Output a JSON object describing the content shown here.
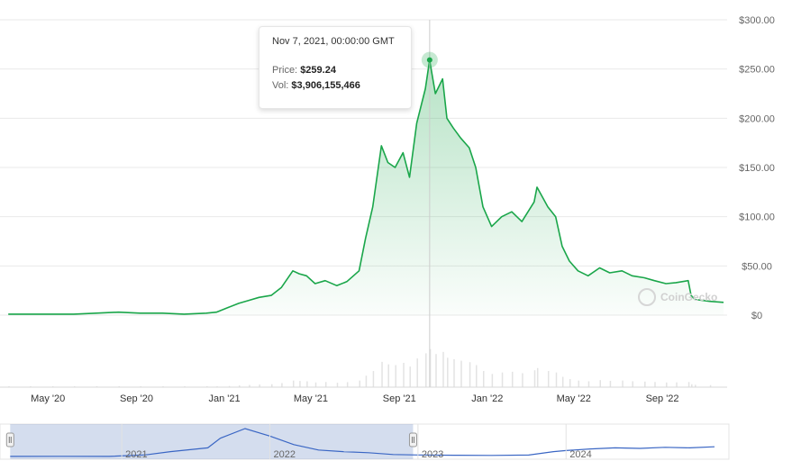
{
  "chart_data": {
    "type": "area",
    "y_axis": {
      "min": 0,
      "max": 300,
      "ticks": [
        0,
        50,
        100,
        150,
        200,
        250,
        300
      ],
      "tick_labels": [
        "$0",
        "$50.00",
        "$100.00",
        "$150.00",
        "$200.00",
        "$250.00",
        "$300.00"
      ],
      "grid": true
    },
    "x_tick_labels": [
      "May '20",
      "Sep '20",
      "Jan '21",
      "May '21",
      "Sep '21",
      "Jan '22",
      "May '22",
      "Sep '22"
    ],
    "navigator_tick_labels": [
      "2021",
      "2022",
      "2023",
      "2024"
    ],
    "series": [
      {
        "color": "#1aa64a",
        "x": [
          "2020-04",
          "2020-05",
          "2020-06",
          "2020-07",
          "2020-08",
          "2020-09",
          "2020-10",
          "2020-11",
          "2020-12",
          "2021-01",
          "2021-01-15",
          "2021-02",
          "2021-02-15",
          "2021-03",
          "2021-03-15",
          "2021-04",
          "2021-04-15",
          "2021-05",
          "2021-05-10",
          "2021-05-20",
          "2021-06",
          "2021-06-15",
          "2021-07",
          "2021-07-15",
          "2021-08",
          "2021-08-10",
          "2021-08-20",
          "2021-09",
          "2021-09-10",
          "2021-09-20",
          "2021-10",
          "2021-10-10",
          "2021-10-20",
          "2021-11",
          "2021-11-07",
          "2021-11-15",
          "2021-11-25",
          "2021-12",
          "2021-12-10",
          "2021-12-20",
          "2022-01",
          "2022-01-10",
          "2022-01-20",
          "2022-02",
          "2022-02-15",
          "2022-03",
          "2022-03-15",
          "2022-04",
          "2022-04-05",
          "2022-04-20",
          "2022-05",
          "2022-05-10",
          "2022-05-20",
          "2022-06",
          "2022-06-15",
          "2022-07",
          "2022-07-15",
          "2022-08",
          "2022-08-15",
          "2022-09",
          "2022-09-15",
          "2022-10",
          "2022-10-15",
          "2022-11",
          "2022-11-05",
          "2022-11-10",
          "2022-12",
          "2022-12-20"
        ],
        "y": [
          1,
          1,
          1,
          1,
          2,
          3,
          2,
          2,
          1,
          2,
          3,
          8,
          12,
          15,
          18,
          20,
          28,
          45,
          42,
          40,
          32,
          35,
          30,
          34,
          45,
          78,
          110,
          172,
          155,
          150,
          165,
          140,
          195,
          230,
          259,
          225,
          240,
          200,
          190,
          180,
          170,
          150,
          110,
          90,
          100,
          105,
          95,
          115,
          130,
          110,
          100,
          70,
          55,
          45,
          40,
          48,
          43,
          45,
          40,
          38,
          35,
          32,
          33,
          35,
          20,
          16,
          14,
          13
        ]
      }
    ],
    "tooltip": {
      "date": "Nov 7, 2021, 00:00:00 GMT",
      "price_label": "Price:",
      "price_value": "$259.24",
      "vol_label": "Vol:",
      "vol_value": "$3,906,155,466",
      "point": {
        "x": "2021-11-07",
        "y": 259.24
      }
    },
    "navigator": {
      "series": {
        "x": [
          "2020-04",
          "2020-08",
          "2020-12",
          "2021-03",
          "2021-05",
          "2021-08",
          "2021-09",
          "2021-11",
          "2022-01",
          "2022-03",
          "2022-05",
          "2022-07",
          "2022-09",
          "2022-11",
          "2023-01",
          "2023-04",
          "2023-07",
          "2023-10",
          "2023-12",
          "2024-01",
          "2024-03",
          "2024-05",
          "2024-07",
          "2024-09",
          "2024-11",
          "2025-01"
        ],
        "y": [
          1,
          2,
          1,
          15,
          45,
          80,
          170,
          259,
          190,
          110,
          60,
          45,
          35,
          18,
          14,
          12,
          10,
          13,
          45,
          55,
          70,
          80,
          75,
          85,
          80,
          90
        ]
      },
      "selected_range": [
        "2020-04",
        "2022-12-20"
      ]
    },
    "watermark": "CoinGecko"
  }
}
